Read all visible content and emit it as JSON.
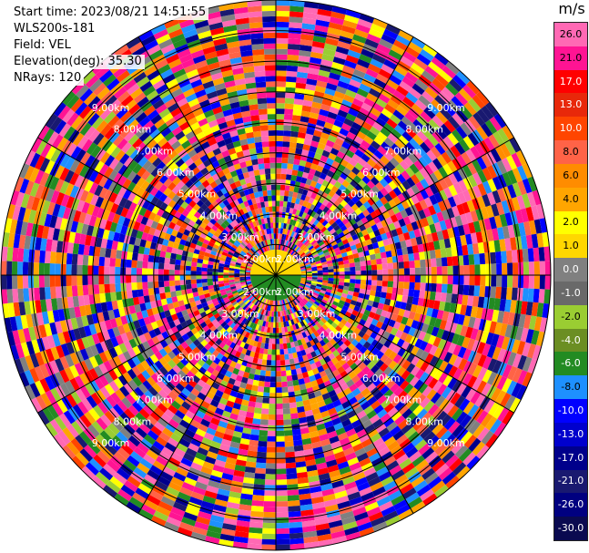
{
  "info": {
    "start_time": "Start time: 2023/08/21 14:51:55",
    "instrument": "WLS200s-181",
    "field": "Field: VEL",
    "elevation": "Elevation(deg): 35.30",
    "nrays": "NRays: 120"
  },
  "colorbar": {
    "unit": "m/s",
    "ticks": [
      "26.0",
      "21.0",
      "17.0",
      "13.0",
      "10.0",
      "8.0",
      "6.0",
      "4.0",
      "2.0",
      "1.0",
      "0.0",
      "-1.0",
      "-2.0",
      "-4.0",
      "-6.0",
      "-8.0",
      "-10.0",
      "-13.0",
      "-17.0",
      "-21.0",
      "-26.0",
      "-30.0"
    ],
    "colors": [
      "#ff69b4",
      "#ff1493",
      "#ff0000",
      "#e8280a",
      "#ff4500",
      "#ff6347",
      "#ff8c00",
      "#ffa500",
      "#ffff00",
      "#ffd700",
      "#808080",
      "#696969",
      "#9acd32",
      "#6b8e23",
      "#228b22",
      "#1e90ff",
      "#0000ff",
      "#0000cd",
      "#00008b",
      "#191970",
      "#000080",
      "#0a0a50"
    ]
  },
  "range_labels": [
    "2.00km",
    "3.00km",
    "4.00km",
    "5.00km",
    "6.00km",
    "7.00km",
    "8.00km",
    "9.00km"
  ],
  "range_label_text": "+.00km",
  "nrays": 120
}
